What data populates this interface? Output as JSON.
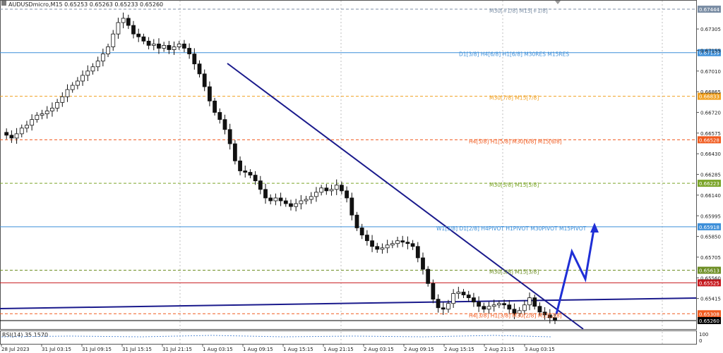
{
  "chart_data": {
    "type": "candlestick",
    "title": "AUDUSDmicro,M15  0.65253 0.65263 0.65233 0.65260",
    "x_ticks": [
      "28 Jul 2023",
      "31 Jul 03:15",
      "31 Jul 09:15",
      "31 Jul 15:15",
      "31 Jul 21:15",
      "1 Aug 03:15",
      "1 Aug 09:15",
      "1 Aug 15:15",
      "1 Aug 21:15",
      "2 Aug 03:15",
      "2 Aug 09:15",
      "2 Aug 15:15",
      "2 Aug 21:15",
      "3 Aug 03:15"
    ],
    "y_ticks": [
      "0.67305",
      "0.67155",
      "0.67010",
      "0.66865",
      "0.66720",
      "0.66575",
      "0.66430",
      "0.66285",
      "0.66140",
      "0.65995",
      "0.65850",
      "0.65705",
      "0.65560",
      "0.65415"
    ],
    "ylim": [
      0.6516,
      0.675
    ],
    "close_path": [
      0.6658,
      0.6656,
      0.6654,
      0.6657,
      0.6661,
      0.6663,
      0.6667,
      0.667,
      0.6671,
      0.6673,
      0.6675,
      0.6679,
      0.6683,
      0.6688,
      0.6691,
      0.6694,
      0.6698,
      0.6701,
      0.6704,
      0.6708,
      0.6713,
      0.6718,
      0.6727,
      0.6735,
      0.6738,
      0.6733,
      0.6727,
      0.6725,
      0.6722,
      0.6719,
      0.672,
      0.6717,
      0.6719,
      0.6716,
      0.6718,
      0.672,
      0.6717,
      0.6713,
      0.6706,
      0.6699,
      0.669,
      0.668,
      0.6672,
      0.6667,
      0.666,
      0.665,
      0.6638,
      0.6631,
      0.663,
      0.6628,
      0.6624,
      0.6618,
      0.6612,
      0.661,
      0.6612,
      0.661,
      0.6608,
      0.6606,
      0.6608,
      0.661,
      0.6611,
      0.6613,
      0.6616,
      0.6619,
      0.6617,
      0.6618,
      0.6621,
      0.6617,
      0.6612,
      0.66,
      0.6591,
      0.6586,
      0.6582,
      0.6578,
      0.6576,
      0.6577,
      0.6579,
      0.658,
      0.6582,
      0.6581,
      0.658,
      0.6578,
      0.657,
      0.6562,
      0.6552,
      0.6541,
      0.6535,
      0.6534,
      0.6538,
      0.6545,
      0.6546,
      0.6544,
      0.6542,
      0.6539,
      0.6536,
      0.6534,
      0.6536,
      0.6537,
      0.6538,
      0.6537,
      0.6534,
      0.6531,
      0.6533,
      0.6537,
      0.6542,
      0.6536,
      0.6532,
      0.653,
      0.6528,
      0.6526
    ],
    "horizontal_levels": [
      {
        "price": "0.67444",
        "label": "M30[+1/8] M15[+1/8]",
        "color": "#7b8ea5",
        "style": "dashed"
      },
      {
        "price": "0.67139",
        "label": "D1[3/8] H4[6/8] H1[6/8] M30RES M15RES",
        "color": "#3d8fd9",
        "style": "solid"
      },
      {
        "price": "0.66833",
        "label": "M30[7/8] M15[7/8]",
        "color": "#f0a020",
        "style": "dashed"
      },
      {
        "price": "0.66528",
        "label": "H4[5/8] H1[5/8] M30[6/8] M15[6/8]",
        "color": "#f05a1e",
        "style": "dashed"
      },
      {
        "price": "0.66223",
        "label": "M30[5/8] M15[5/8]",
        "color": "#7aa428",
        "style": "dashed"
      },
      {
        "price": "0.65918",
        "label": "W1[3/8] D1[2/8] H4PIVOT H1PIVOT M30PIVOT M15PIVOT",
        "color": "#3d8fd9",
        "style": "solid"
      },
      {
        "price": "0.65613",
        "label": "M30[3/8] M15[3/8]",
        "color": "#6d8e24",
        "style": "dashed"
      },
      {
        "price": "0.65525",
        "label": "",
        "color": "#c8191e",
        "style": "solid"
      },
      {
        "price": "0.65308",
        "label": "H4[3/8] H1[3/8] M30[2/8] M15[2/8]",
        "color": "#f05a1e",
        "style": "dashed"
      },
      {
        "price": "0.65260",
        "label": "",
        "color": "#000000",
        "style": "solid"
      }
    ],
    "indicator": "RSI(14) 35.1570",
    "indicator_ticks": [
      "100",
      "0"
    ]
  }
}
